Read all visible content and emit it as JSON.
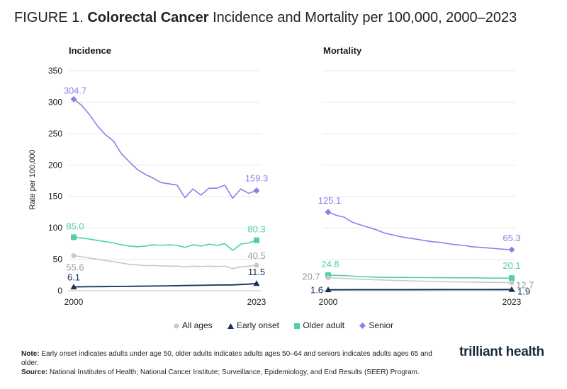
{
  "title": {
    "prefix": "FIGURE 1.",
    "bold": "Colorectal Cancer",
    "rest": "Incidence and Mortality per 100,000, 2000–2023"
  },
  "colors": {
    "all_ages": "#c8c8c8",
    "early_onset": "#13315c",
    "older_adult": "#4fd1a0",
    "senior": "#8e7fe8"
  },
  "legend": [
    {
      "key": "all_ages",
      "label": "All ages",
      "marker": "circle"
    },
    {
      "key": "early_onset",
      "label": "Early onset",
      "marker": "triangle"
    },
    {
      "key": "older_adult",
      "label": "Older adult",
      "marker": "square"
    },
    {
      "key": "senior",
      "label": "Senior",
      "marker": "diamond"
    }
  ],
  "chart_data": [
    {
      "type": "line",
      "title": "Incidence",
      "ylabel": "Rate per 100,000",
      "ylim": [
        0,
        350
      ],
      "yticks": [
        0,
        50,
        100,
        150,
        200,
        250,
        300,
        350
      ],
      "xlim": [
        2000,
        2023
      ],
      "xtick_labels": [
        "2000",
        "2023"
      ],
      "grid": true,
      "series": [
        {
          "key": "senior",
          "name": "Senior",
          "start_label": "304.7",
          "end_label": "159.3",
          "points": [
            [
              2000,
              304.7
            ],
            [
              2001,
              295
            ],
            [
              2002,
              280
            ],
            [
              2003,
              262
            ],
            [
              2004,
              248
            ],
            [
              2005,
              238
            ],
            [
              2006,
              218
            ],
            [
              2007,
              205
            ],
            [
              2008,
              193
            ],
            [
              2009,
              185
            ],
            [
              2010,
              179
            ],
            [
              2011,
              172
            ],
            [
              2012,
              170
            ],
            [
              2013,
              168
            ],
            [
              2014,
              148
            ],
            [
              2015,
              162
            ],
            [
              2016,
              152
            ],
            [
              2017,
              163
            ],
            [
              2018,
              163
            ],
            [
              2019,
              168
            ],
            [
              2020,
              147
            ],
            [
              2021,
              162
            ],
            [
              2022,
              155
            ],
            [
              2023,
              159.3
            ]
          ]
        },
        {
          "key": "older_adult",
          "name": "Older adult",
          "start_label": "85.0",
          "end_label": "80.3",
          "points": [
            [
              2000,
              85.0
            ],
            [
              2001,
              84
            ],
            [
              2002,
              82
            ],
            [
              2003,
              80
            ],
            [
              2004,
              78
            ],
            [
              2005,
              76
            ],
            [
              2006,
              73
            ],
            [
              2007,
              71
            ],
            [
              2008,
              70
            ],
            [
              2009,
              71
            ],
            [
              2010,
              73
            ],
            [
              2011,
              72
            ],
            [
              2012,
              73
            ],
            [
              2013,
              72
            ],
            [
              2014,
              69
            ],
            [
              2015,
              73
            ],
            [
              2016,
              71
            ],
            [
              2017,
              74
            ],
            [
              2018,
              72
            ],
            [
              2019,
              75
            ],
            [
              2020,
              64
            ],
            [
              2021,
              74
            ],
            [
              2022,
              76
            ],
            [
              2023,
              80.3
            ]
          ]
        },
        {
          "key": "all_ages",
          "name": "All ages",
          "start_label": "55.6",
          "end_label": "40.5",
          "points": [
            [
              2000,
              55.6
            ],
            [
              2001,
              54
            ],
            [
              2002,
              52
            ],
            [
              2003,
              50
            ],
            [
              2004,
              48
            ],
            [
              2005,
              46
            ],
            [
              2006,
              44
            ],
            [
              2007,
              42
            ],
            [
              2008,
              41
            ],
            [
              2009,
              40
            ],
            [
              2010,
              40
            ],
            [
              2011,
              39.5
            ],
            [
              2012,
              39
            ],
            [
              2013,
              39
            ],
            [
              2014,
              38
            ],
            [
              2015,
              39
            ],
            [
              2016,
              38.5
            ],
            [
              2017,
              39
            ],
            [
              2018,
              38.5
            ],
            [
              2019,
              39
            ],
            [
              2020,
              35
            ],
            [
              2021,
              38
            ],
            [
              2022,
              39
            ],
            [
              2023,
              40.5
            ]
          ]
        },
        {
          "key": "early_onset",
          "name": "Early onset",
          "start_label": "6.1",
          "end_label": "11.5",
          "points": [
            [
              2000,
              6.1
            ],
            [
              2002,
              6.3
            ],
            [
              2004,
              6.5
            ],
            [
              2006,
              6.8
            ],
            [
              2008,
              7.1
            ],
            [
              2010,
              7.4
            ],
            [
              2012,
              7.8
            ],
            [
              2014,
              8.2
            ],
            [
              2016,
              8.6
            ],
            [
              2018,
              9.0
            ],
            [
              2020,
              9.2
            ],
            [
              2022,
              10.5
            ],
            [
              2023,
              11.5
            ]
          ]
        }
      ]
    },
    {
      "type": "line",
      "title": "Mortality",
      "ylim": [
        0,
        350
      ],
      "xlim": [
        2000,
        2023
      ],
      "xtick_labels": [
        "2000",
        "2023"
      ],
      "grid": true,
      "series": [
        {
          "key": "senior",
          "name": "Senior",
          "start_label": "125.1",
          "end_label": "65.3",
          "points": [
            [
              2000,
              125.1
            ],
            [
              2001,
              120
            ],
            [
              2002,
              117
            ],
            [
              2003,
              109
            ],
            [
              2004,
              105
            ],
            [
              2005,
              101
            ],
            [
              2006,
              97
            ],
            [
              2007,
              92
            ],
            [
              2008,
              89
            ],
            [
              2009,
              86
            ],
            [
              2010,
              84
            ],
            [
              2011,
              82
            ],
            [
              2012,
              80
            ],
            [
              2013,
              78
            ],
            [
              2014,
              77
            ],
            [
              2015,
              75
            ],
            [
              2016,
              73
            ],
            [
              2017,
              72
            ],
            [
              2018,
              70
            ],
            [
              2019,
              69
            ],
            [
              2020,
              68
            ],
            [
              2021,
              67
            ],
            [
              2022,
              66
            ],
            [
              2023,
              65.3
            ]
          ]
        },
        {
          "key": "older_adult",
          "name": "Older adult",
          "start_label": "24.8",
          "end_label": "20.1",
          "points": [
            [
              2000,
              24.8
            ],
            [
              2002,
              24
            ],
            [
              2004,
              22.5
            ],
            [
              2006,
              21.5
            ],
            [
              2008,
              21
            ],
            [
              2010,
              21
            ],
            [
              2012,
              20.8
            ],
            [
              2014,
              20.7
            ],
            [
              2016,
              20.5
            ],
            [
              2018,
              20.5
            ],
            [
              2020,
              20
            ],
            [
              2022,
              20
            ],
            [
              2023,
              20.1
            ]
          ]
        },
        {
          "key": "all_ages",
          "name": "All ages",
          "start_label": "20.7",
          "end_label": "12.7",
          "points": [
            [
              2000,
              20.7
            ],
            [
              2002,
              19.5
            ],
            [
              2004,
              18.3
            ],
            [
              2006,
              17.3
            ],
            [
              2008,
              16.5
            ],
            [
              2010,
              15.7
            ],
            [
              2012,
              15
            ],
            [
              2014,
              14.5
            ],
            [
              2016,
              14
            ],
            [
              2018,
              13.7
            ],
            [
              2020,
              13.3
            ],
            [
              2022,
              12.9
            ],
            [
              2023,
              12.7
            ]
          ]
        },
        {
          "key": "early_onset",
          "name": "Early onset",
          "start_label": "1.6",
          "end_label": "1.9",
          "points": [
            [
              2000,
              1.6
            ],
            [
              2005,
              1.65
            ],
            [
              2010,
              1.7
            ],
            [
              2015,
              1.8
            ],
            [
              2020,
              1.85
            ],
            [
              2023,
              1.9
            ]
          ]
        }
      ]
    }
  ],
  "footer": {
    "note_label": "Note:",
    "note_text": "Early onset indicates adults under age 50, older adults indicates adults ages 50–64 and seniors indicates adults ages 65 and older.",
    "source_label": "Source:",
    "source_text": "National Institutes of Health; National Cancer Institute; Surveillance, Epidemiology, and End Results (SEER) Program."
  },
  "logo": "trilliant health"
}
